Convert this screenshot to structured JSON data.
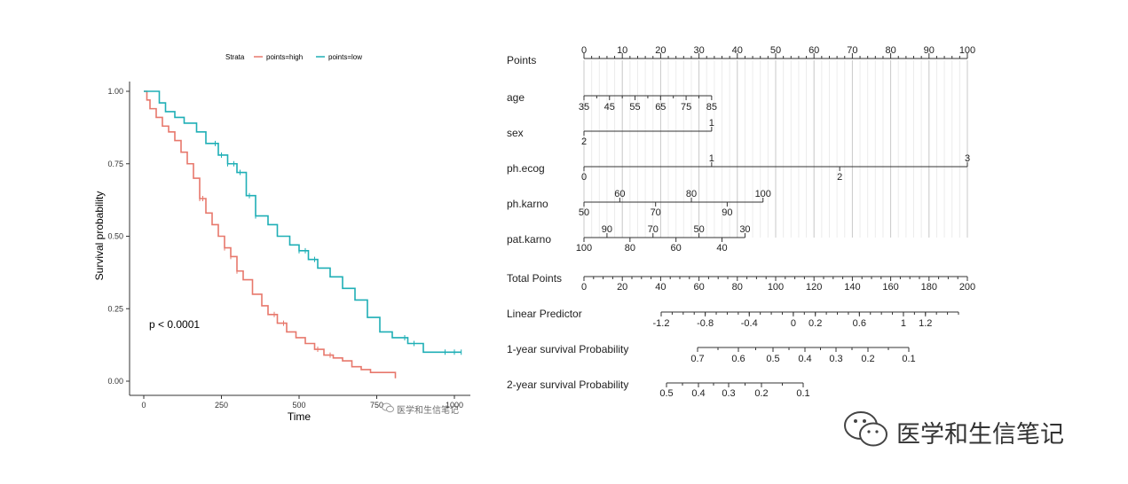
{
  "chart_data": [
    {
      "type": "line",
      "subtype": "kaplan-meier",
      "xlabel": "Time",
      "ylabel": "Survival probability",
      "xlim": [
        0,
        1022
      ],
      "ylim": [
        0,
        1
      ],
      "xticks": [
        "0",
        "250",
        "500",
        "750",
        "1000"
      ],
      "yticks": [
        "0.00",
        "0.25",
        "0.50",
        "0.75",
        "1.00"
      ],
      "legend_title": "Strata",
      "legend_position": "top",
      "annotation": "p < 0.0001",
      "grid": false,
      "series": [
        {
          "name": "points=high",
          "color": "#E7786C",
          "x": [
            0,
            10,
            20,
            40,
            60,
            80,
            100,
            120,
            140,
            160,
            180,
            200,
            220,
            240,
            260,
            280,
            300,
            320,
            350,
            380,
            400,
            430,
            460,
            490,
            520,
            550,
            580,
            610,
            640,
            670,
            700,
            730,
            760,
            790,
            810
          ],
          "y": [
            1.0,
            0.97,
            0.94,
            0.91,
            0.88,
            0.86,
            0.83,
            0.79,
            0.75,
            0.7,
            0.63,
            0.58,
            0.54,
            0.5,
            0.46,
            0.43,
            0.38,
            0.35,
            0.3,
            0.26,
            0.23,
            0.2,
            0.17,
            0.15,
            0.13,
            0.11,
            0.09,
            0.08,
            0.07,
            0.05,
            0.04,
            0.03,
            0.03,
            0.03,
            0.01
          ]
        },
        {
          "name": "points=low",
          "color": "#1FAFB6",
          "x": [
            0,
            50,
            70,
            100,
            130,
            170,
            200,
            240,
            270,
            300,
            330,
            360,
            400,
            430,
            470,
            500,
            530,
            560,
            600,
            640,
            680,
            720,
            760,
            800,
            850,
            900,
            950,
            1000,
            1022
          ],
          "y": [
            1.0,
            0.96,
            0.93,
            0.91,
            0.89,
            0.86,
            0.82,
            0.78,
            0.75,
            0.72,
            0.64,
            0.57,
            0.54,
            0.5,
            0.47,
            0.45,
            0.42,
            0.39,
            0.36,
            0.32,
            0.28,
            0.22,
            0.17,
            0.15,
            0.13,
            0.1,
            0.1,
            0.1,
            0.1
          ]
        }
      ],
      "censor_marks": {
        "points=high": [
          180,
          190,
          260,
          280,
          300,
          420,
          450,
          560,
          600
        ],
        "points=low": [
          230,
          250,
          270,
          290,
          310,
          340,
          360,
          500,
          520,
          550,
          840,
          870,
          970,
          1000,
          1022
        ]
      }
    },
    {
      "type": "nomogram",
      "rows": [
        {
          "label": "Points",
          "ticks": [
            "0",
            "10",
            "20",
            "30",
            "40",
            "50",
            "60",
            "70",
            "80",
            "90",
            "100"
          ],
          "points_range": [
            0,
            100
          ]
        },
        {
          "label": "age",
          "ticks": [
            "35",
            "45",
            "55",
            "65",
            "75",
            "85"
          ],
          "points_range": [
            0,
            33
          ]
        },
        {
          "label": "sex",
          "above": [
            "1"
          ],
          "below": [
            "2"
          ],
          "points_range": [
            0,
            33
          ]
        },
        {
          "label": "ph.ecog",
          "above": [
            "1",
            "3"
          ],
          "below": [
            "0",
            "2"
          ],
          "points_range": [
            0,
            100
          ]
        },
        {
          "label": "ph.karno",
          "above": [
            "60",
            "80",
            "100"
          ],
          "below": [
            "50",
            "70",
            "90"
          ],
          "points_range": [
            0,
            47
          ]
        },
        {
          "label": "pat.karno",
          "above": [
            "90",
            "70",
            "50",
            "30"
          ],
          "below": [
            "100",
            "80",
            "60",
            "40"
          ],
          "points_range": [
            0,
            42
          ]
        },
        {
          "label": "Total Points",
          "ticks": [
            "0",
            "20",
            "40",
            "60",
            "80",
            "100",
            "120",
            "140",
            "160",
            "180",
            "200"
          ],
          "points_range": [
            0,
            200
          ]
        },
        {
          "label": "Linear Predictor",
          "ticks": [
            "-1.2",
            "-0.8",
            "-0.4",
            "0",
            "0.2",
            "0.6",
            "1",
            "1.2"
          ]
        },
        {
          "label": "1-year survival Probability",
          "ticks": [
            "0.7",
            "0.6",
            "0.5",
            "0.4",
            "0.3",
            "0.2",
            "0.1"
          ]
        },
        {
          "label": "2-year survival Probability",
          "ticks": [
            "0.5",
            "0.4",
            "0.3",
            "0.2",
            "0.1"
          ]
        }
      ],
      "gridlines": true
    }
  ],
  "watermark": {
    "text": "医学和生信笔记",
    "icon": "wechat-icon"
  }
}
